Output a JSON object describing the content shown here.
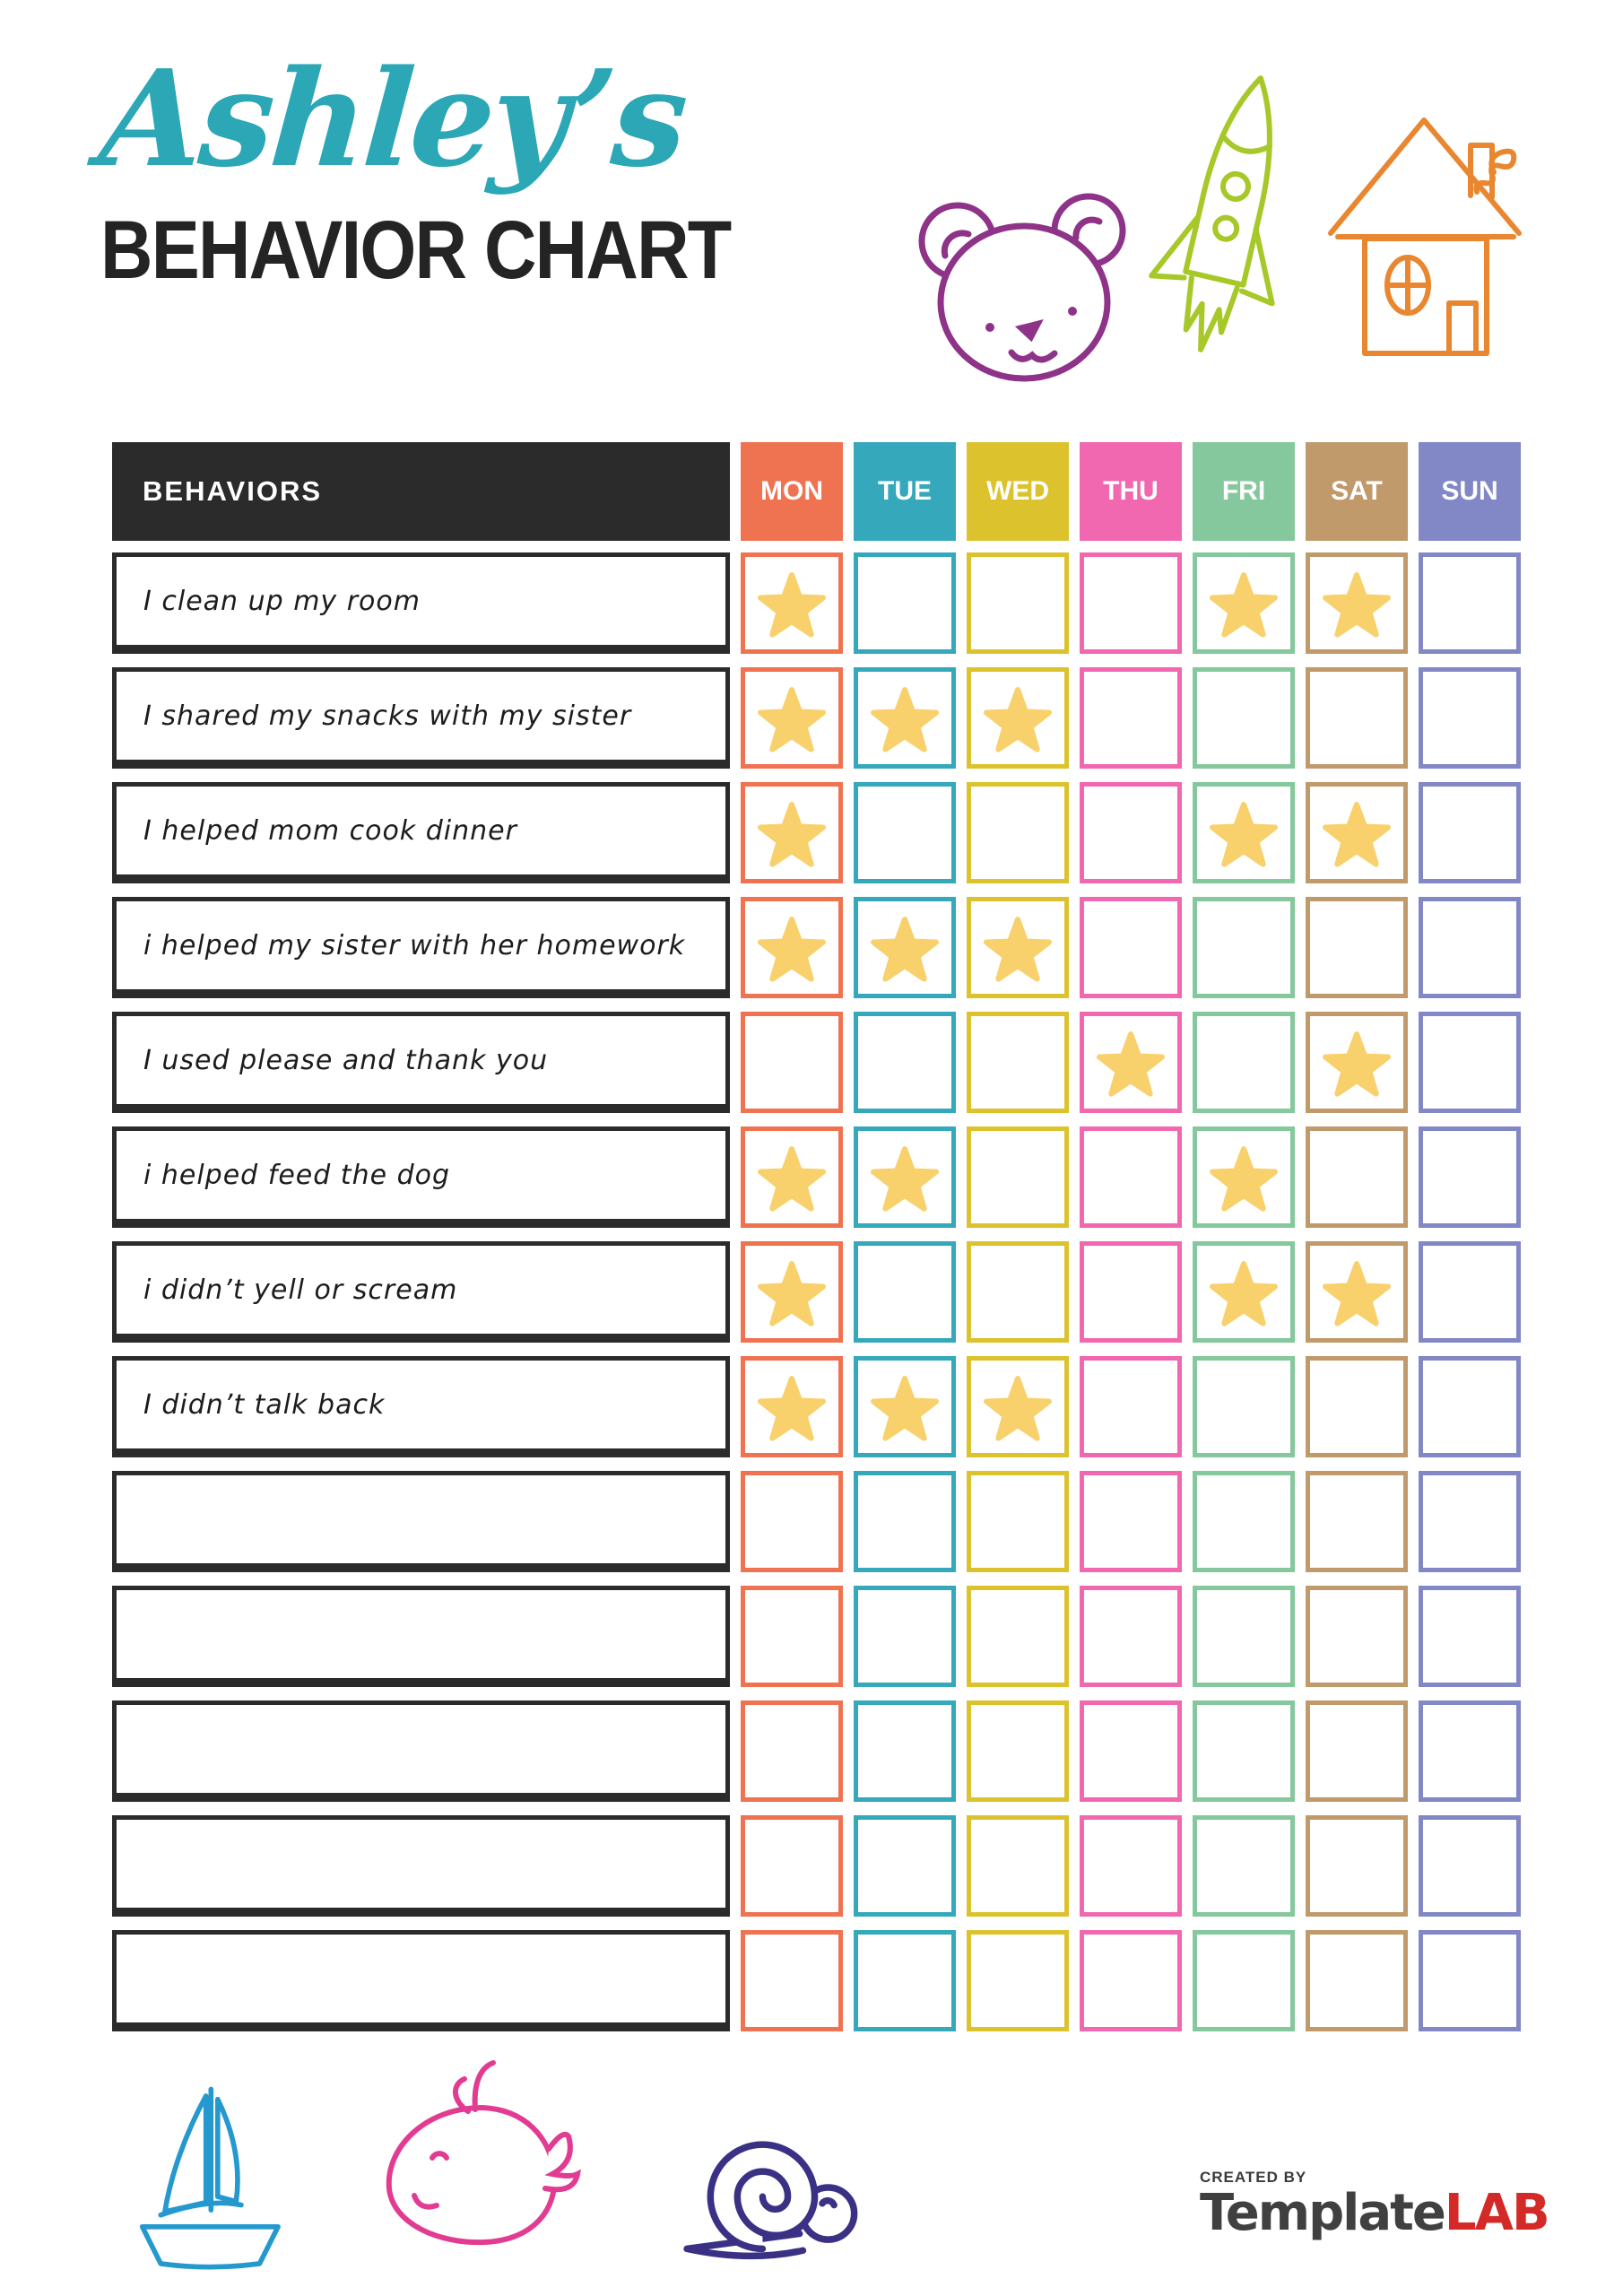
{
  "header": {
    "name_script": "Ashley’s",
    "title": "BEHAVIOR CHART"
  },
  "table": {
    "behaviors_header": "BEHAVIORS",
    "behaviors_header_bg": "#2B2B2B",
    "star_color": "#F8D16D",
    "days": [
      {
        "label": "MON",
        "color": "#EF7251"
      },
      {
        "label": "TUE",
        "color": "#35A8BC"
      },
      {
        "label": "WED",
        "color": "#DCC32E"
      },
      {
        "label": "THU",
        "color": "#F168B1"
      },
      {
        "label": "FRI",
        "color": "#86C89D"
      },
      {
        "label": "SAT",
        "color": "#C19A6B"
      },
      {
        "label": "SUN",
        "color": "#8287C6"
      }
    ],
    "rows": [
      {
        "label": "I clean up my room",
        "stars": [
          "MON",
          "FRI",
          "SAT"
        ]
      },
      {
        "label": "I shared my snacks with my sister",
        "stars": [
          "MON",
          "TUE",
          "WED"
        ]
      },
      {
        "label": "I helped mom cook dinner",
        "stars": [
          "MON",
          "FRI",
          "SAT"
        ]
      },
      {
        "label": "i helped my sister with her homework",
        "stars": [
          "MON",
          "TUE",
          "WED"
        ]
      },
      {
        "label": "I used please and thank you",
        "stars": [
          "THU",
          "SAT"
        ]
      },
      {
        "label": "i helped feed the dog",
        "stars": [
          "MON",
          "TUE",
          "FRI"
        ]
      },
      {
        "label": "i didn’t yell or scream",
        "stars": [
          "MON",
          "FRI",
          "SAT"
        ]
      },
      {
        "label": "I didn’t talk back",
        "stars": [
          "MON",
          "TUE",
          "WED"
        ]
      },
      {
        "label": "",
        "stars": []
      },
      {
        "label": "",
        "stars": []
      },
      {
        "label": "",
        "stars": []
      },
      {
        "label": "",
        "stars": []
      },
      {
        "label": "",
        "stars": []
      }
    ]
  },
  "doodles": {
    "top": [
      {
        "name": "teddy-bear-icon",
        "color": "#8E3388"
      },
      {
        "name": "rocket-icon",
        "color": "#A7C829"
      },
      {
        "name": "house-icon",
        "color": "#E8872F"
      }
    ],
    "bottom": [
      {
        "name": "sailboat-icon",
        "color": "#2599CE"
      },
      {
        "name": "whale-icon",
        "color": "#E23C92"
      },
      {
        "name": "snail-icon",
        "color": "#3A3185"
      }
    ]
  },
  "footer": {
    "created_by": "CREATED BY",
    "brand_name": "Template",
    "brand_suffix": "LAB"
  }
}
